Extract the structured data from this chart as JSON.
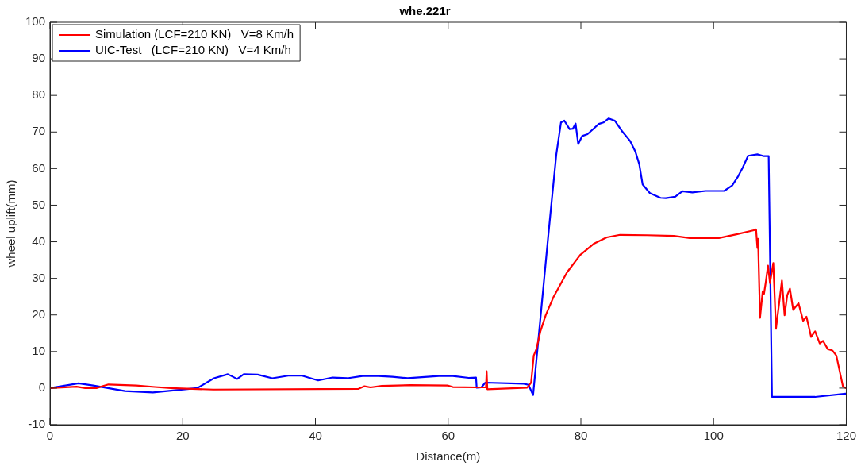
{
  "chart_data": {
    "type": "line",
    "title": "whe.221r",
    "xlabel": "Distance(m)",
    "ylabel": "wheel uplift(mm)",
    "xlim": [
      0,
      120
    ],
    "xticks": [
      0,
      20,
      40,
      60,
      80,
      100,
      120
    ],
    "ylim": [
      -10,
      100
    ],
    "yticks": [
      -10,
      0,
      10,
      20,
      30,
      40,
      50,
      60,
      70,
      80,
      90,
      100
    ],
    "grid": false,
    "legend": "top left",
    "marker": "none",
    "line_style": "solid",
    "series": [
      {
        "name": "Simulation (LCF=210 KN)   V=8 Km/h",
        "color": "#ff0000",
        "x": [
          0,
          4.0,
          5.3,
          7.0,
          8.8,
          13.0,
          15.8,
          18.2,
          24.6,
          46.5,
          47.4,
          48.3,
          50.0,
          54.3,
          59.9,
          60.7,
          64.2,
          65.7,
          65.8,
          65.9,
          71.9,
          72.5,
          72.9,
          73.3,
          73.9,
          74.7,
          75.9,
          77.9,
          79.9,
          81.9,
          83.9,
          85.9,
          90,
          94,
          96.4,
          100.8,
          103.6,
          106.2,
          106.4,
          106.6,
          106.7,
          107.0,
          107.4,
          107.6,
          107.9,
          108.2,
          108.5,
          109.0,
          109.4,
          109.9,
          110.3,
          110.7,
          111.1,
          111.5,
          112.0,
          112.8,
          113.5,
          114.0,
          114.7,
          115.3,
          116.0,
          116.5,
          117.2,
          117.9,
          118.5,
          119.5,
          120
        ],
        "values": [
          0,
          0.4,
          0,
          0,
          1.0,
          0.7,
          0.3,
          0,
          -0.4,
          -0.2,
          0.5,
          0.2,
          0.6,
          0.8,
          0.7,
          0.3,
          0.2,
          0.2,
          4.6,
          -0.3,
          0.1,
          1.5,
          8.9,
          10.7,
          15.5,
          19.9,
          25.0,
          31.6,
          36.4,
          39.4,
          41.2,
          41.9,
          41.8,
          41.6,
          41.0,
          41.0,
          42.1,
          43.2,
          43.4,
          38.3,
          40.8,
          19.2,
          26.5,
          25.8,
          29.4,
          33.5,
          28.7,
          34.2,
          16.2,
          23.5,
          29.4,
          19.9,
          25.4,
          27.2,
          21.4,
          23.2,
          18.4,
          19.5,
          14.0,
          15.5,
          12.2,
          12.9,
          10.7,
          10.3,
          8.9,
          0.4,
          0
        ]
      },
      {
        "name": "UIC-Test   (LCF=210 KN)   V=4 Km/h",
        "color": "#0000ff",
        "x": [
          0,
          4.3,
          6.5,
          11.3,
          15.5,
          22.2,
          24.7,
          26.8,
          28.2,
          29.2,
          31.3,
          33.5,
          35.9,
          38.0,
          40.4,
          42.6,
          44.8,
          47.1,
          49.5,
          51.6,
          53.9,
          58.6,
          60.7,
          63.1,
          64.2,
          64.3,
          65.0,
          65.6,
          71.4,
          72.1,
          72.8,
          75.1,
          75.5,
          76.3,
          77.0,
          77.5,
          78.3,
          78.8,
          79.2,
          79.6,
          80.2,
          81.0,
          81.8,
          82.7,
          83.4,
          84.2,
          85.1,
          86.3,
          87.4,
          88.2,
          88.8,
          89.3,
          90.4,
          92.0,
          92.8,
          94.2,
          95.3,
          96.8,
          98.8,
          101.6,
          102.8,
          103.7,
          104.4,
          105.2,
          106.6,
          107.6,
          108.3,
          108.8,
          115.3,
          119.9
        ],
        "values": [
          0,
          1.3,
          0.7,
          -0.8,
          -1.2,
          0,
          2.7,
          3.8,
          2.5,
          3.8,
          3.7,
          2.7,
          3.4,
          3.4,
          2.1,
          2.9,
          2.7,
          3.3,
          3.3,
          3.1,
          2.7,
          3.3,
          3.3,
          2.8,
          2.9,
          0.1,
          0.2,
          1.5,
          1.2,
          0.9,
          -1.9,
          41.9,
          49.3,
          63.9,
          72.6,
          73.1,
          70.8,
          70.9,
          72.3,
          66.7,
          68.9,
          69.4,
          70.7,
          72.2,
          72.6,
          73.7,
          73.1,
          70.0,
          67.6,
          64.7,
          61.2,
          55.7,
          53.3,
          52.0,
          51.9,
          52.3,
          53.8,
          53.5,
          53.9,
          53.9,
          55.4,
          57.9,
          60.3,
          63.5,
          63.9,
          63.4,
          63.4,
          -2.4,
          -2.4,
          -1.5
        ]
      }
    ]
  }
}
